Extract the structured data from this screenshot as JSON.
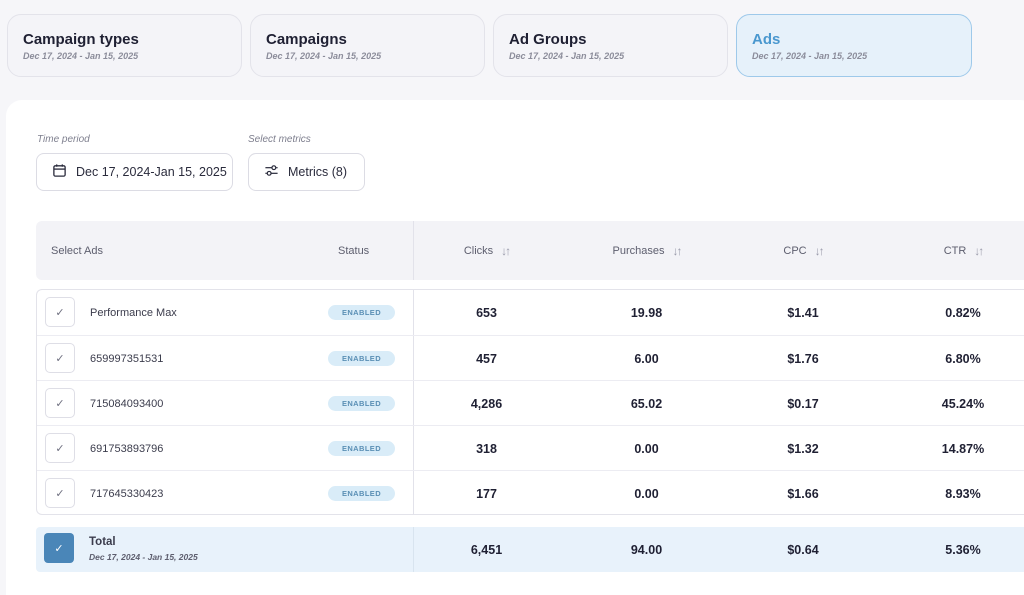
{
  "tabs": [
    {
      "title": "Campaign types",
      "date": "Dec 17, 2024 - Jan 15, 2025",
      "active": false
    },
    {
      "title": "Campaigns",
      "date": "Dec 17, 2024 - Jan 15, 2025",
      "active": false
    },
    {
      "title": "Ad Groups",
      "date": "Dec 17, 2024 - Jan 15, 2025",
      "active": false
    },
    {
      "title": "Ads",
      "date": "Dec 17, 2024 - Jan 15, 2025",
      "active": true
    }
  ],
  "filters": {
    "time_period_label": "Time period",
    "time_period_value": "Dec 17, 2024-Jan 15, 2025",
    "metrics_label": "Select metrics",
    "metrics_value": "Metrics (8)"
  },
  "table": {
    "headers": {
      "select": "Select Ads",
      "status": "Status",
      "clicks": "Clicks",
      "purchases": "Purchases",
      "cpc": "CPC",
      "ctr": "CTR"
    },
    "rows": [
      {
        "name": "Performance Max",
        "status": "ENABLED",
        "clicks": "653",
        "purchases": "19.98",
        "cpc": "$1.41",
        "ctr": "0.82%"
      },
      {
        "name": "659997351531",
        "status": "ENABLED",
        "clicks": "457",
        "purchases": "6.00",
        "cpc": "$1.76",
        "ctr": "6.80%"
      },
      {
        "name": "715084093400",
        "status": "ENABLED",
        "clicks": "4,286",
        "purchases": "65.02",
        "cpc": "$0.17",
        "ctr": "45.24%"
      },
      {
        "name": "691753893796",
        "status": "ENABLED",
        "clicks": "318",
        "purchases": "0.00",
        "cpc": "$1.32",
        "ctr": "14.87%"
      },
      {
        "name": "717645330423",
        "status": "ENABLED",
        "clicks": "177",
        "purchases": "0.00",
        "cpc": "$1.66",
        "ctr": "8.93%"
      }
    ],
    "total": {
      "label": "Total",
      "date": "Dec 17, 2024 - Jan 15, 2025",
      "clicks": "6,451",
      "purchases": "94.00",
      "cpc": "$0.64",
      "ctr": "5.36%"
    }
  },
  "icons": {
    "check": "✓",
    "sort": "↓↑"
  },
  "colors": {
    "accent": "#4a98cf",
    "badge_bg": "#d9ecf8",
    "checkbox_checked": "#4a86b8"
  }
}
